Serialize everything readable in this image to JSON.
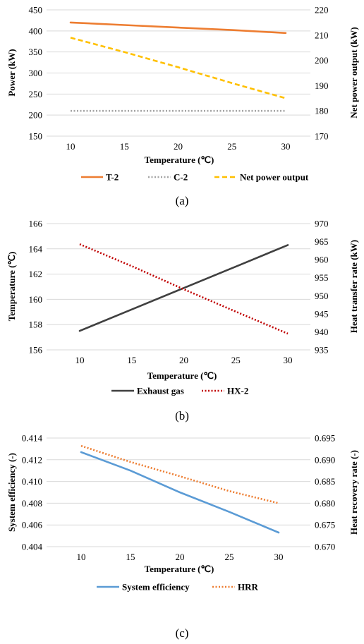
{
  "chart_data": [
    {
      "type": "line",
      "caption": "(a)",
      "xlabel": "Temperature (℃)",
      "ylabel": "Power (kW)",
      "y2label": "Net power output (kW)",
      "x_ticks": [
        "10",
        "15",
        "20",
        "25",
        "30"
      ],
      "y_ticks": [
        "150",
        "200",
        "250",
        "300",
        "350",
        "400",
        "450"
      ],
      "y2_ticks": [
        "170",
        "180",
        "190",
        "200",
        "210",
        "220"
      ],
      "xlim": [
        10,
        30
      ],
      "ylim": [
        150,
        450
      ],
      "y2lim": [
        170,
        220
      ],
      "grid": true,
      "legend_position": "bottom",
      "series": [
        {
          "name": "T-2",
          "axis": "left",
          "color": "#ED7D31",
          "style": "solid",
          "x": [
            10,
            15,
            20,
            25,
            30
          ],
          "values": [
            420,
            414,
            408,
            402,
            395
          ]
        },
        {
          "name": "C-2",
          "axis": "left",
          "color": "#A5A5A5",
          "style": "dotted",
          "x": [
            10,
            15,
            20,
            25,
            30
          ],
          "values": [
            210,
            210,
            210,
            210,
            210
          ]
        },
        {
          "name": "Net power output",
          "axis": "right",
          "color": "#FFC000",
          "style": "dashed",
          "x": [
            10,
            15,
            20,
            25,
            30
          ],
          "values": [
            209,
            203.3,
            197.3,
            191,
            185
          ]
        }
      ]
    },
    {
      "type": "line",
      "caption": "(b)",
      "xlabel": "Temperature (℃)",
      "ylabel": "Temperature (℃)",
      "y2label": "Heat transfer rate (kW)",
      "x_ticks": [
        "10",
        "15",
        "20",
        "25",
        "30"
      ],
      "y_ticks": [
        "156",
        "158",
        "160",
        "162",
        "164",
        "166"
      ],
      "y2_ticks": [
        "935",
        "940",
        "945",
        "950",
        "955",
        "960",
        "965",
        "970"
      ],
      "xlim": [
        10,
        30
      ],
      "ylim": [
        156,
        166
      ],
      "y2lim": [
        935,
        970
      ],
      "grid": true,
      "legend_position": "bottom",
      "series": [
        {
          "name": "Exhaust gas",
          "axis": "left",
          "color": "#404040",
          "style": "solid",
          "x": [
            10,
            15,
            20,
            25,
            30
          ],
          "values": [
            157.5,
            159.2,
            160.9,
            162.6,
            164.3
          ]
        },
        {
          "name": "HX-2",
          "axis": "right",
          "color": "#C00000",
          "style": "dotted",
          "x": [
            10,
            15,
            20,
            25,
            30
          ],
          "values": [
            964.3,
            958.2,
            951.8,
            945.6,
            939.5
          ]
        }
      ]
    },
    {
      "type": "line",
      "caption": "(c)",
      "xlabel": "Temperature (℃)",
      "ylabel": "System efficiency (-)",
      "y2label": "Heat recovery rate (-)",
      "x_ticks": [
        "10",
        "15",
        "20",
        "25",
        "30"
      ],
      "y_ticks": [
        "0.404",
        "0.406",
        "0.408",
        "0.410",
        "0.412",
        "0.414"
      ],
      "y2_ticks": [
        "0.670",
        "0.675",
        "0.680",
        "0.685",
        "0.690",
        "0.695"
      ],
      "xlim": [
        10,
        30
      ],
      "ylim": [
        0.404,
        0.414
      ],
      "y2lim": [
        0.67,
        0.695
      ],
      "grid": true,
      "legend_position": "bottom",
      "series": [
        {
          "name": "System efficiency",
          "axis": "left",
          "color": "#5B9BD5",
          "style": "solid",
          "x": [
            10,
            15,
            20,
            25,
            30
          ],
          "values": [
            0.4127,
            0.411,
            0.409,
            0.4072,
            0.4053
          ]
        },
        {
          "name": "HRR",
          "axis": "right",
          "color": "#ED7D31",
          "style": "dotted",
          "x": [
            10,
            15,
            20,
            25,
            30
          ],
          "values": [
            0.6932,
            0.6895,
            0.6862,
            0.6828,
            0.68
          ]
        }
      ]
    }
  ]
}
